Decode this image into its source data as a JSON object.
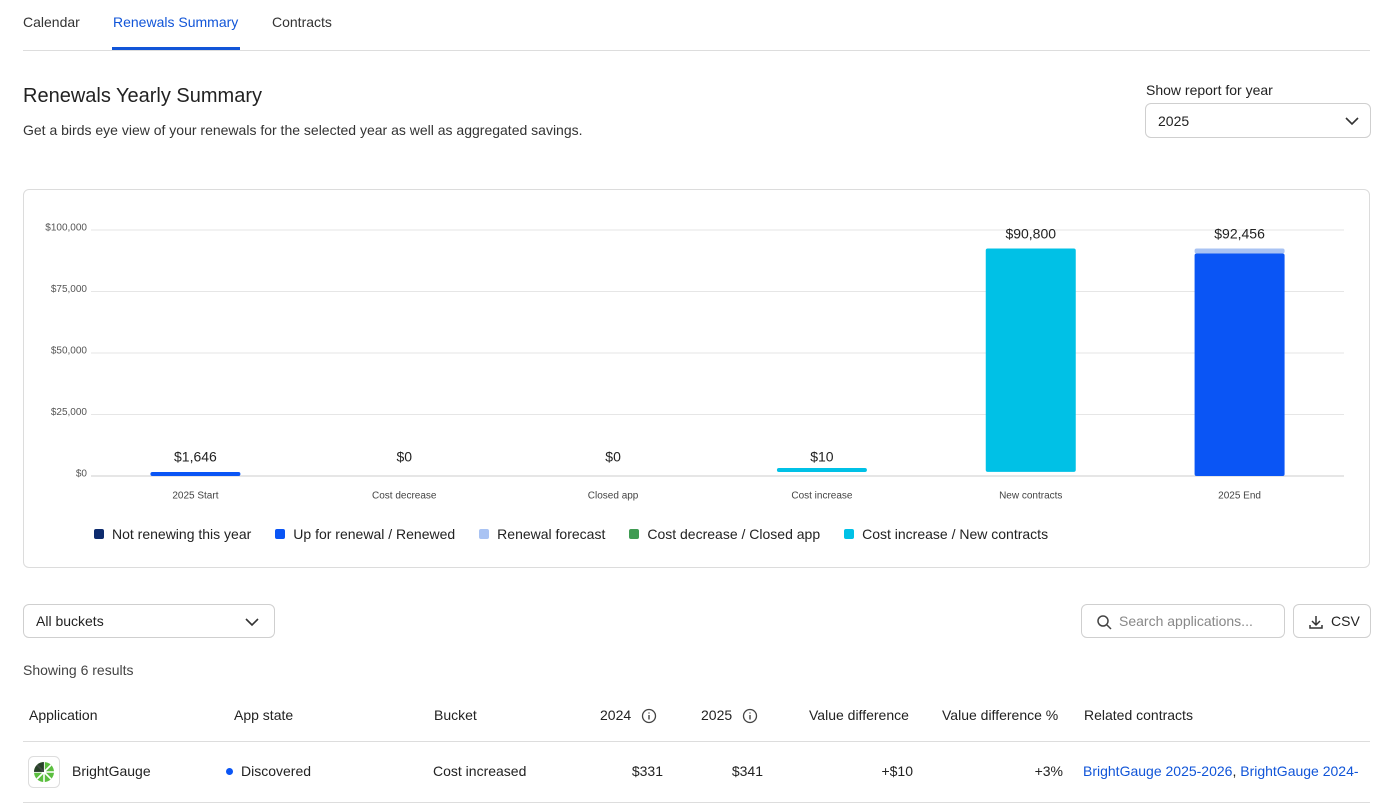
{
  "tabs": [
    "Calendar",
    "Renewals Summary",
    "Contracts"
  ],
  "header": {
    "title": "Renewals Yearly Summary",
    "subtitle": "Get a birds eye view of your renewals for the selected year as well as aggregated savings."
  },
  "year_select": {
    "label": "Show report for year",
    "value": "2025"
  },
  "chart_data": {
    "type": "waterfall",
    "categories": [
      "2025 Start",
      "Cost decrease",
      "Closed app",
      "Cost increase",
      "New contracts",
      "2025 End"
    ],
    "values": [
      1646,
      0,
      0,
      10,
      90800,
      92456
    ],
    "value_labels": [
      "$1,646",
      "$0",
      "$0",
      "$10",
      "$90,800",
      "$92,456"
    ],
    "series": [
      {
        "name": "Not renewing this year",
        "color": "#0d2b6e",
        "values": [
          null,
          null,
          null,
          null,
          null,
          null
        ]
      },
      {
        "name": "Up for renewal / Renewed",
        "color": "#0a55f5",
        "values": [
          1646,
          null,
          null,
          null,
          null,
          90456
        ]
      },
      {
        "name": "Renewal forecast",
        "color": "#a9c3f3",
        "values": [
          null,
          null,
          null,
          null,
          null,
          2000
        ]
      },
      {
        "name": "Cost decrease / Closed app",
        "color": "#3f9b52",
        "values": [
          null,
          0,
          0,
          null,
          null,
          null
        ]
      },
      {
        "name": "Cost increase / New contracts",
        "color": "#00c1e6",
        "values": [
          null,
          null,
          null,
          10,
          90800,
          null
        ]
      }
    ],
    "ylim": [
      0,
      100000
    ],
    "yticks": [
      {
        "value": 0,
        "label": "$0"
      },
      {
        "value": 25000,
        "label": "$25,000"
      },
      {
        "value": 50000,
        "label": "$50,000"
      },
      {
        "value": 75000,
        "label": "$75,000"
      },
      {
        "value": 100000,
        "label": "$100,000"
      }
    ],
    "grid": true
  },
  "filters": {
    "bucket": "All buckets",
    "search_placeholder": "Search applications...",
    "csv": "CSV"
  },
  "results": "Showing 6 results",
  "table": {
    "columns": [
      "Application",
      "App state",
      "Bucket",
      "2024",
      "2025",
      "Value difference",
      "Value difference %",
      "Related contracts"
    ],
    "rows": [
      [
        "BrightGauge",
        "Discovered",
        "Cost increased",
        "$331",
        "$341",
        "+$10",
        "+3%",
        [
          "BrightGauge 2025-2026",
          "BrightGauge 2024-"
        ]
      ]
    ]
  }
}
